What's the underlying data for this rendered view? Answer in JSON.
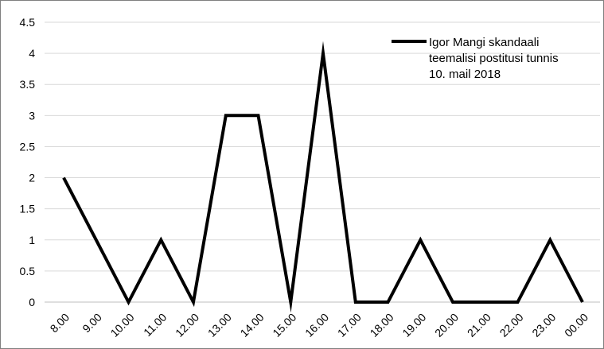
{
  "chart_data": {
    "type": "line",
    "title": "",
    "xlabel": "",
    "ylabel": "",
    "categories": [
      "8.00",
      "9.00",
      "10.00",
      "11.00",
      "12.00",
      "13.00",
      "14.00",
      "15.00",
      "16.00",
      "17.00",
      "18.00",
      "19.00",
      "20.00",
      "21.00",
      "22.00",
      "23.00",
      "00.00"
    ],
    "series": [
      {
        "name": "Igor Mangi skandaali teemalisi postitusi tunnis 10. mail 2018",
        "name_lines": [
          "Igor Mangi skandaali",
          "teemalisi postitusi tunnis",
          "10. mail 2018"
        ],
        "values": [
          2,
          1,
          0,
          1,
          0,
          3,
          3,
          0,
          4,
          0,
          0,
          1,
          0,
          0,
          0,
          1,
          0
        ],
        "color": "#000000"
      }
    ],
    "ylim": [
      0,
      4.5
    ],
    "yticks": [
      "0",
      "0.5",
      "1",
      "1.5",
      "2",
      "2.5",
      "3",
      "3.5",
      "4",
      "4.5"
    ],
    "grid": "horizontal",
    "gridColor": "#d9d9d9",
    "legend": "top-right"
  }
}
